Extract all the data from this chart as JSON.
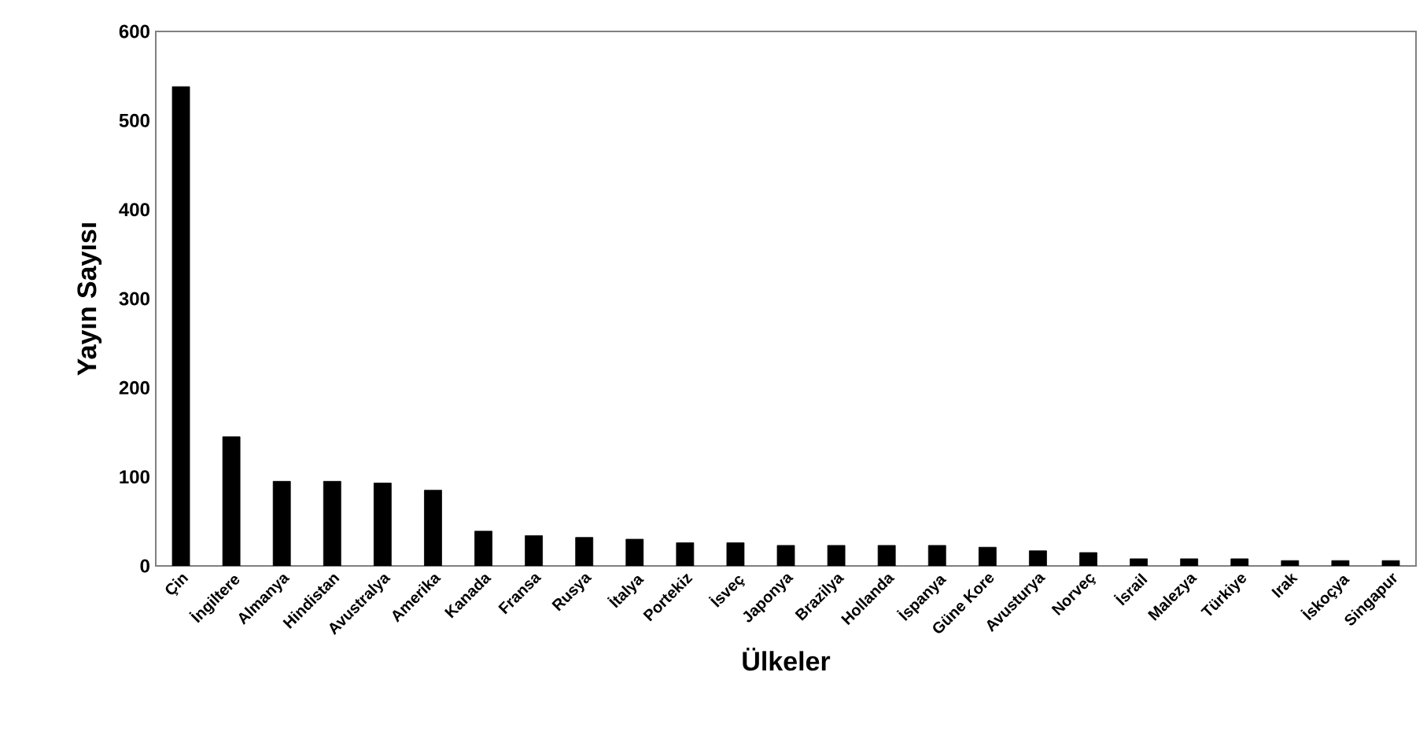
{
  "chart_data": {
    "type": "bar",
    "xlabel": "Ülkeler",
    "ylabel": "Yayın Sayısı",
    "categories": [
      "Çin",
      "İngiltere",
      "Almanya",
      "Hindistan",
      "Avustralya",
      "Amerika",
      "Kanada",
      "Fransa",
      "Rusya",
      "İtalya",
      "Portekiz",
      "İsveç",
      "Japonya",
      "Brazilya",
      "Hollanda",
      "İspanya",
      "Güne Kore",
      "Avusturya",
      "Norveç",
      "İsrail",
      "Malezya",
      "Türkiye",
      "Irak",
      "İskoçya",
      "Singapur"
    ],
    "values": [
      538,
      145,
      95,
      95,
      93,
      85,
      39,
      34,
      32,
      30,
      26,
      26,
      23,
      23,
      23,
      23,
      21,
      17,
      15,
      8,
      8,
      8,
      6,
      6,
      6
    ],
    "color": "#000000",
    "ylim": [
      0,
      600
    ],
    "yticks": [
      0,
      100,
      200,
      300,
      400,
      500,
      600
    ],
    "grid": false
  }
}
